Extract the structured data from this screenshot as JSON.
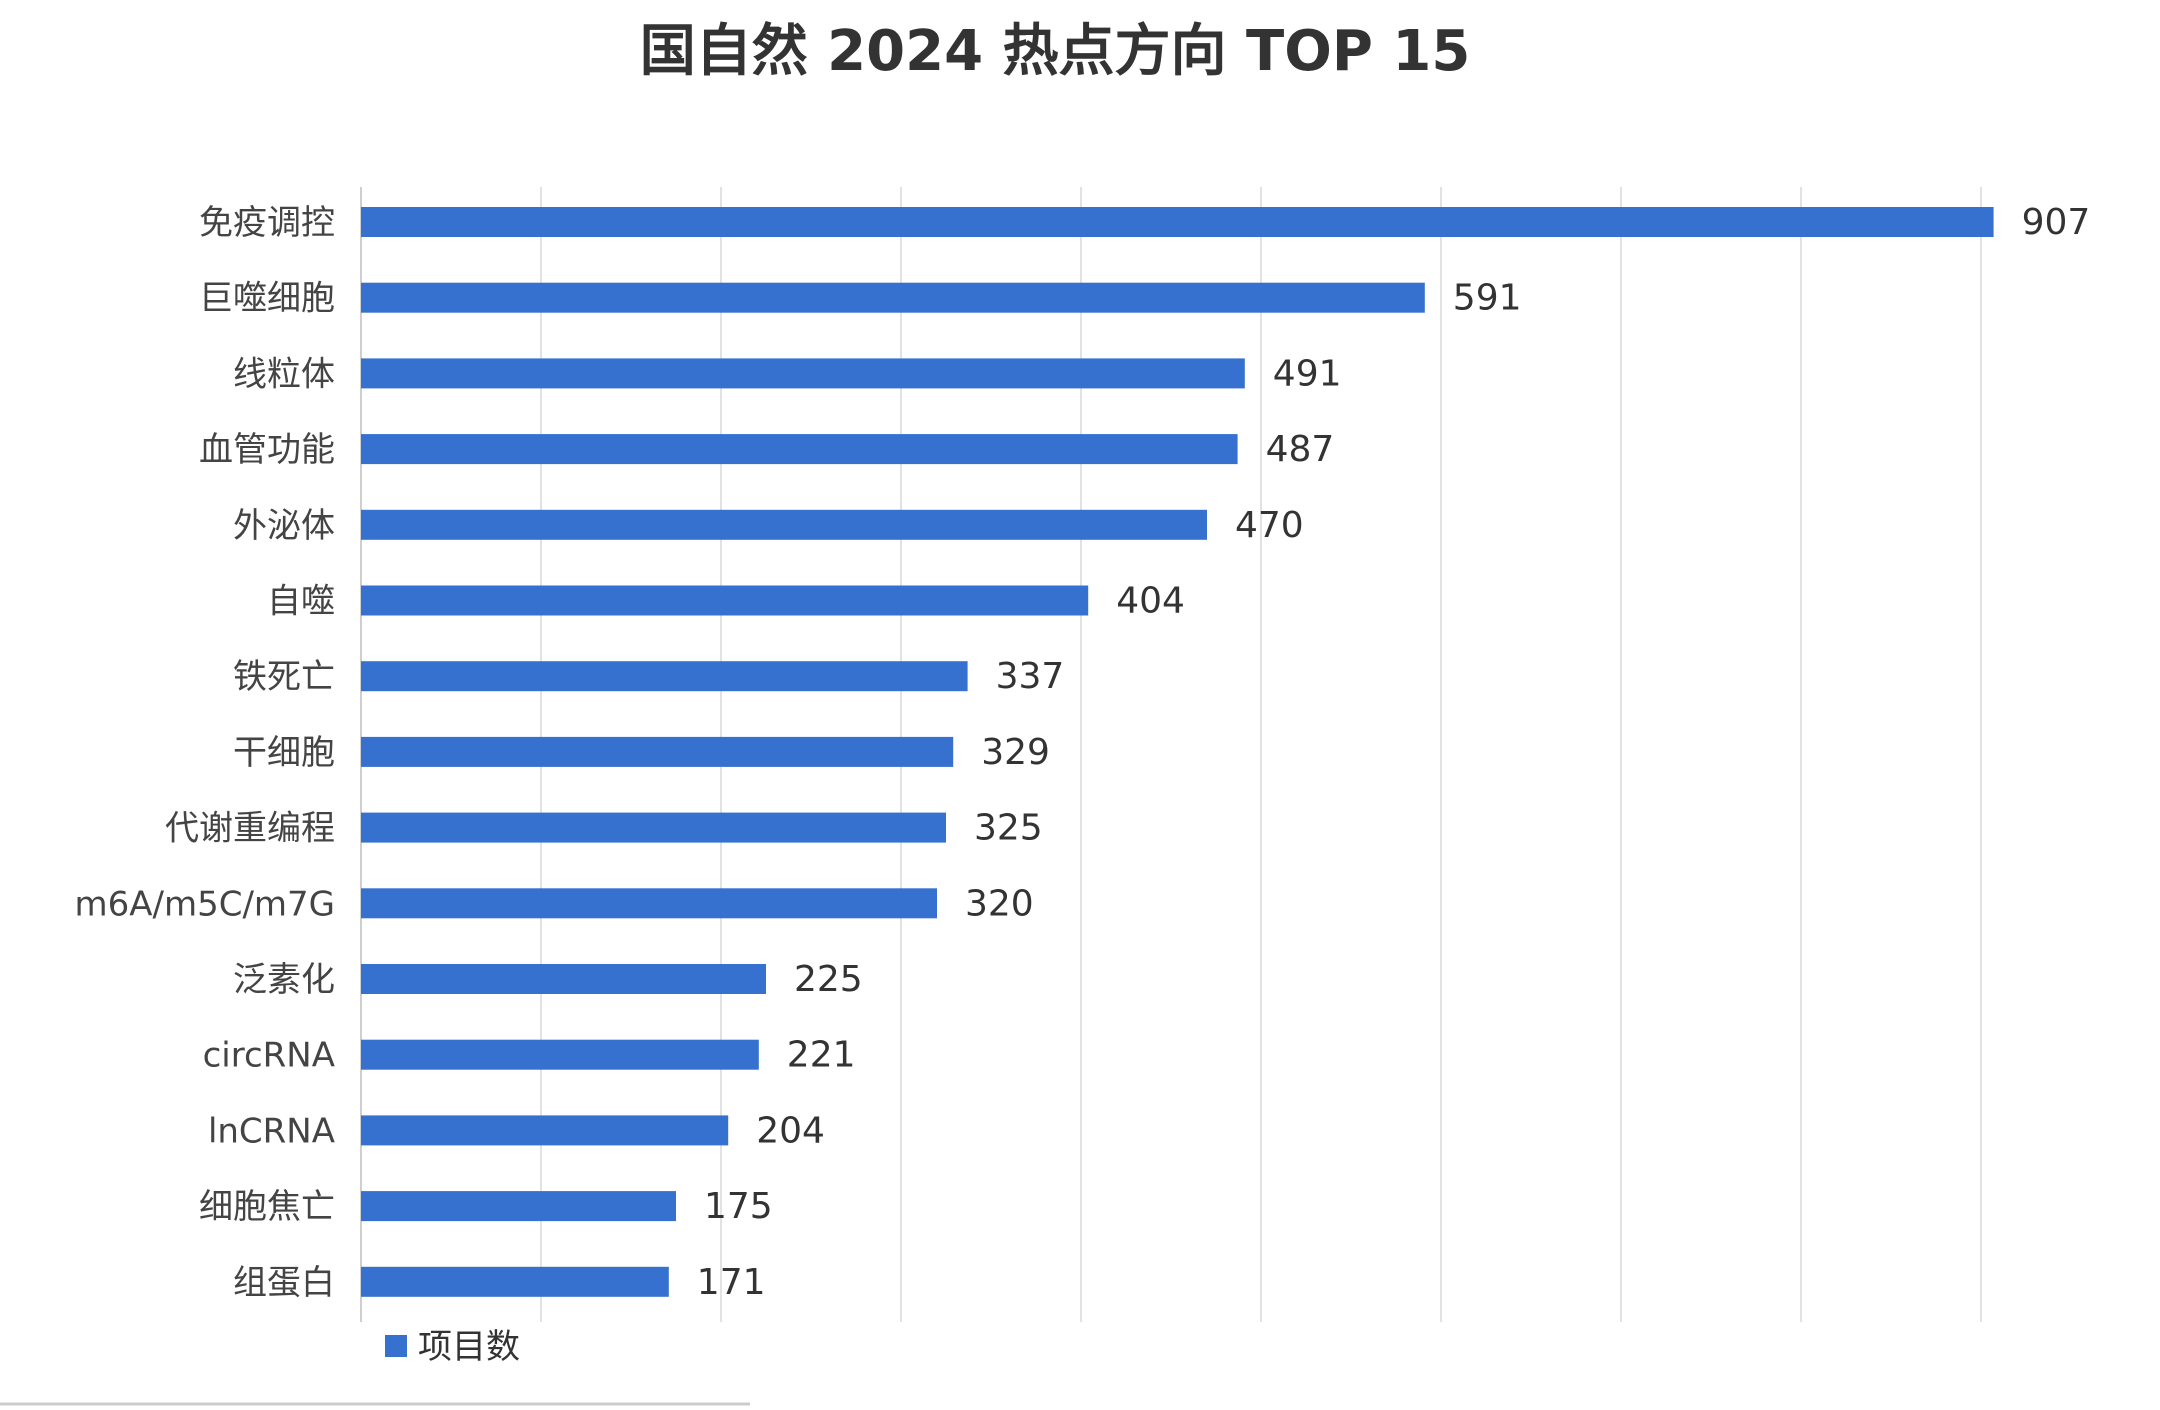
{
  "chart_data": {
    "type": "bar",
    "orientation": "horizontal",
    "title": "国自然 2024 热点方向 TOP 15",
    "categories": [
      "免疫调控",
      "巨噬细胞",
      "线粒体",
      "血管功能",
      "外泌体",
      "自噬",
      "铁死亡",
      "干细胞",
      "代谢重编程",
      "m6A/m5C/m7G",
      "泛素化",
      "circRNA",
      "lnCRNA",
      "细胞焦亡",
      "组蛋白"
    ],
    "series": [
      {
        "name": "项目数",
        "values": [
          907,
          591,
          491,
          487,
          470,
          404,
          337,
          329,
          325,
          320,
          225,
          221,
          204,
          175,
          171
        ],
        "color": "#3671cf"
      }
    ],
    "xlim": [
      0,
      900
    ],
    "grid": true,
    "data_labels": true,
    "legend": "bottom-left"
  }
}
